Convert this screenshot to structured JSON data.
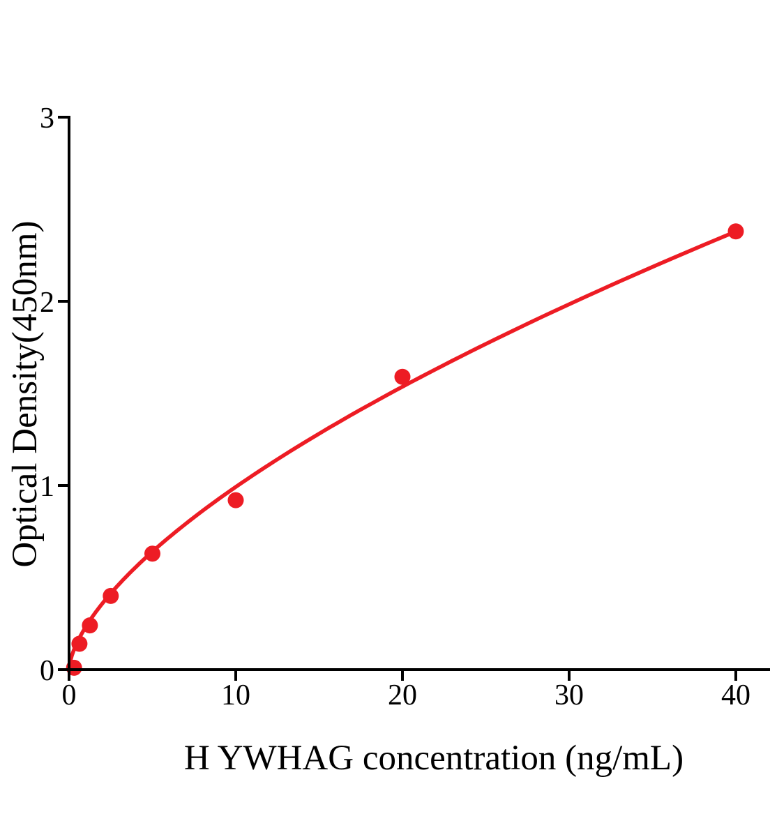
{
  "chart_data": {
    "type": "scatter",
    "title": "",
    "xlabel": "H YWHAG concentration (ng/mL)",
    "ylabel": "Optical Density(450nm)",
    "x_ticks": [
      "0",
      "10",
      "20",
      "30",
      "40"
    ],
    "x_tick_values": [
      0,
      10,
      20,
      30,
      40
    ],
    "y_ticks": [
      "0",
      "1",
      "2",
      "3"
    ],
    "y_tick_values": [
      0,
      1,
      2,
      3
    ],
    "xlim": [
      0,
      42
    ],
    "ylim": [
      0,
      3
    ],
    "grid": false,
    "legend": null,
    "points": [
      {
        "x": 0.3,
        "y": 0.01
      },
      {
        "x": 0.625,
        "y": 0.14
      },
      {
        "x": 1.25,
        "y": 0.24
      },
      {
        "x": 2.5,
        "y": 0.4
      },
      {
        "x": 5,
        "y": 0.63
      },
      {
        "x": 10,
        "y": 0.92
      },
      {
        "x": 20,
        "y": 1.59
      },
      {
        "x": 40,
        "y": 2.38
      }
    ],
    "fit_curve": {
      "model": "power",
      "a": 0.232,
      "b": 0.631,
      "x_start": 0,
      "x_end": 40
    },
    "colors": {
      "series": "#ED1C24",
      "axis": "#000000",
      "background": "#FFFFFF"
    }
  }
}
